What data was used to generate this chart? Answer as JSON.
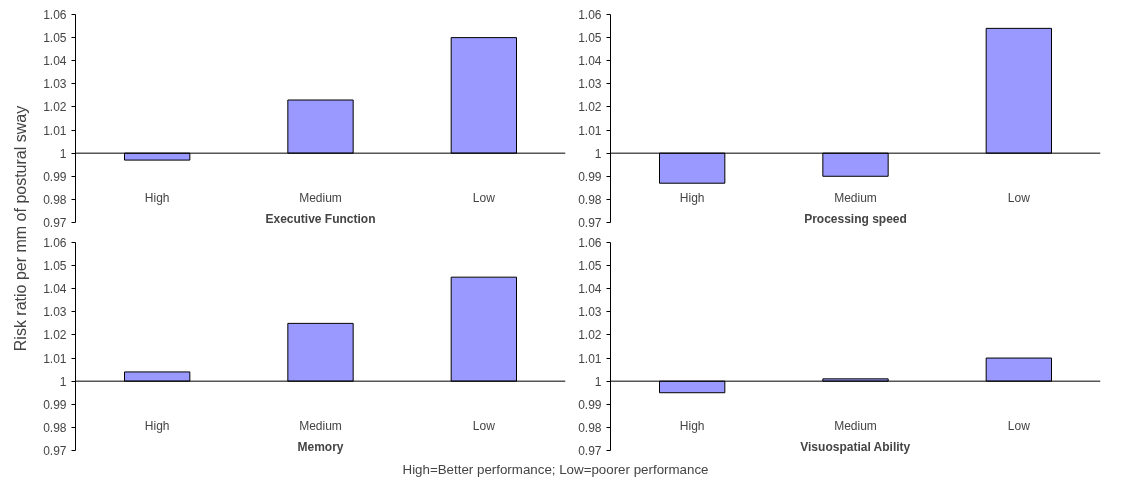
{
  "chart_data": [
    {
      "type": "bar",
      "xlabel": "Executive Function",
      "ylabel": "Risk ratio per mm of postural sway",
      "categories": [
        "High",
        "Medium",
        "Low"
      ],
      "base": [
        1,
        1,
        1
      ],
      "values": [
        -0.003,
        0.023,
        0.05
      ],
      "color": "#9999ff",
      "ylim": [
        0.97,
        1.06
      ],
      "yticks": [
        0.97,
        0.98,
        0.99,
        1,
        1.01,
        1.02,
        1.03,
        1.04,
        1.05,
        1.06
      ]
    },
    {
      "type": "bar",
      "xlabel": "Processing speed",
      "categories": [
        "High",
        "Medium",
        "Low"
      ],
      "base": [
        1,
        1,
        1
      ],
      "values": [
        -0.013,
        -0.01,
        0.054
      ],
      "color": "#9999ff",
      "ylim": [
        0.97,
        1.06
      ],
      "yticks": [
        0.97,
        0.98,
        0.99,
        1,
        1.01,
        1.02,
        1.03,
        1.04,
        1.05,
        1.06
      ]
    },
    {
      "type": "bar",
      "xlabel": "Memory",
      "categories": [
        "High",
        "Medium",
        "Low"
      ],
      "base": [
        1,
        1,
        1
      ],
      "values": [
        0.004,
        0.025,
        0.045
      ],
      "color": "#9999ff",
      "ylim": [
        0.97,
        1.06
      ],
      "yticks": [
        0.97,
        0.98,
        0.99,
        1,
        1.01,
        1.02,
        1.03,
        1.04,
        1.05,
        1.06
      ],
      "annotations": [
        "High=Better performance; Low=poorer performance"
      ]
    },
    {
      "type": "bar",
      "xlabel": "Visuospatial Ability",
      "categories": [
        "High",
        "Medium",
        "Low"
      ],
      "base": [
        1,
        1,
        1
      ],
      "values": [
        -0.005,
        0.001,
        0.01
      ],
      "color": "#9999ff",
      "ylim": [
        0.97,
        1.06
      ],
      "yticks": [
        0.97,
        0.98,
        0.99,
        1,
        1.01,
        1.02,
        1.03,
        1.04,
        1.05,
        1.06
      ]
    }
  ]
}
